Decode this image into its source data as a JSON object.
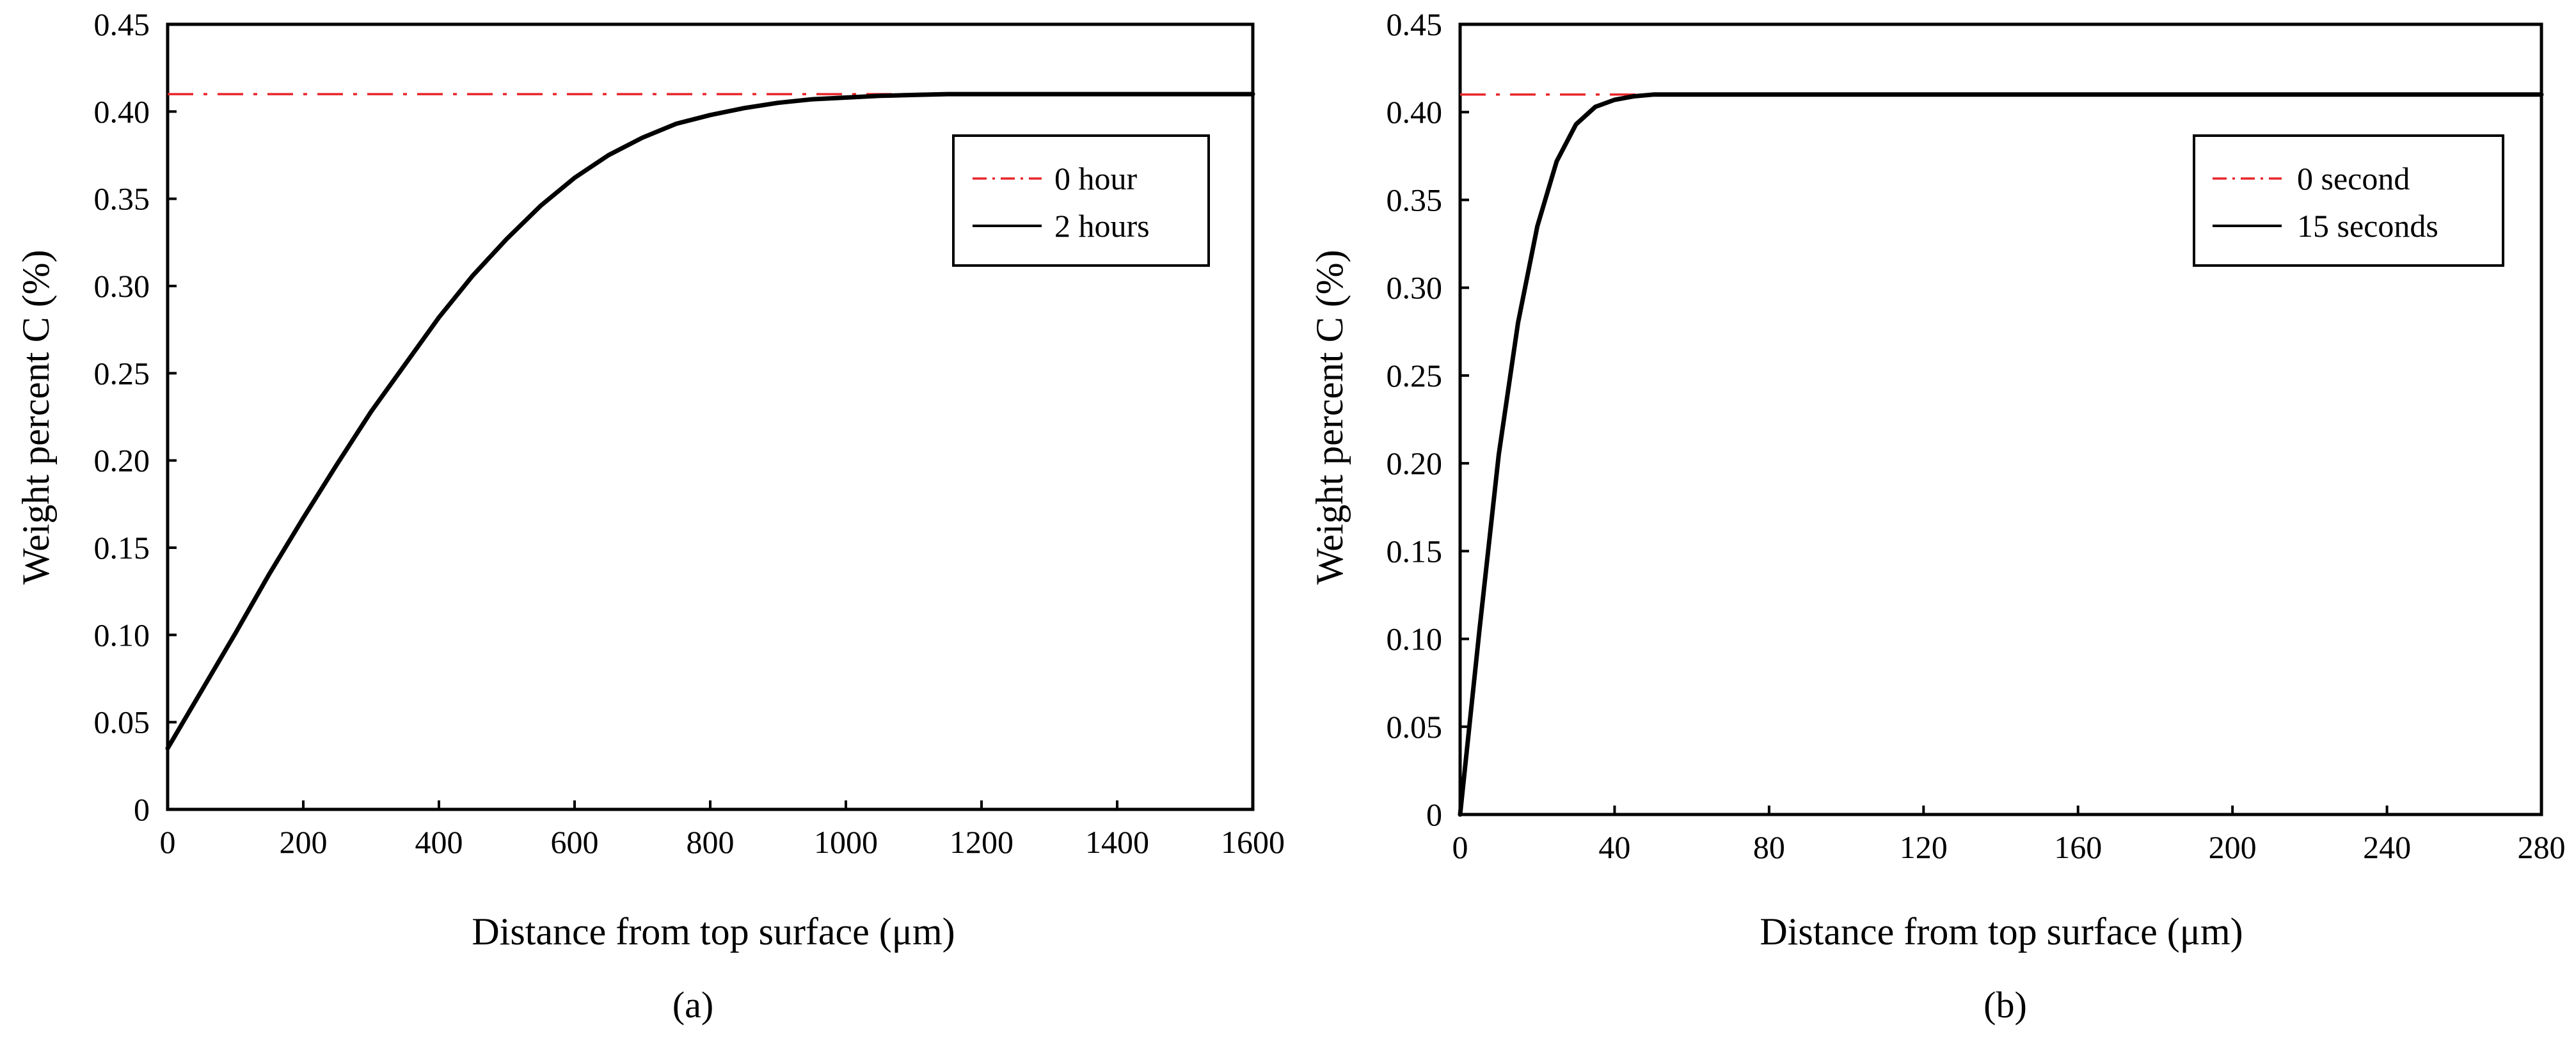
{
  "chart_data": [
    {
      "type": "line",
      "panel_label": "(a)",
      "xlabel": "Distance from top surface (μm)",
      "ylabel": "Weight percent C (%)",
      "xlim": [
        0,
        1600
      ],
      "ylim": [
        0,
        0.45
      ],
      "xticks": [
        0,
        200,
        400,
        600,
        800,
        1000,
        1200,
        1400,
        1600
      ],
      "yticks": [
        0,
        0.05,
        0.1,
        0.15,
        0.2,
        0.25,
        0.3,
        0.35,
        0.4,
        0.45
      ],
      "xtick_labels": [
        "0",
        "200",
        "400",
        "600",
        "800",
        "1000",
        "1200",
        "1400",
        "1600"
      ],
      "ytick_labels": [
        "0",
        "0.05",
        "0.10",
        "0.15",
        "0.20",
        "0.25",
        "0.30",
        "0.35",
        "0.40",
        "0.45"
      ],
      "grid": false,
      "legend_position": "top-right",
      "series": [
        {
          "name": "0 hour",
          "style": "dashdot",
          "color": "#e8262a",
          "x": [
            0,
            1600
          ],
          "y": [
            0.41,
            0.41
          ]
        },
        {
          "name": "2 hours",
          "style": "solid",
          "color": "#000000",
          "x": [
            0,
            50,
            100,
            150,
            200,
            250,
            300,
            350,
            400,
            450,
            500,
            550,
            600,
            650,
            700,
            750,
            800,
            850,
            900,
            950,
            1000,
            1050,
            1100,
            1150,
            1200,
            1300,
            1400,
            1500,
            1600
          ],
          "y": [
            0.035,
            0.068,
            0.101,
            0.135,
            0.167,
            0.198,
            0.228,
            0.255,
            0.282,
            0.306,
            0.327,
            0.346,
            0.362,
            0.375,
            0.385,
            0.393,
            0.398,
            0.402,
            0.405,
            0.407,
            0.408,
            0.409,
            0.4095,
            0.41,
            0.41,
            0.41,
            0.41,
            0.41,
            0.41
          ]
        }
      ]
    },
    {
      "type": "line",
      "panel_label": "(b)",
      "xlabel": "Distance from top surface (μm)",
      "ylabel": "Weight percent C (%)",
      "xlim": [
        0,
        280
      ],
      "ylim": [
        0,
        0.45
      ],
      "xticks": [
        0,
        40,
        80,
        120,
        160,
        200,
        240,
        280
      ],
      "yticks": [
        0,
        0.05,
        0.1,
        0.15,
        0.2,
        0.25,
        0.3,
        0.35,
        0.4,
        0.45
      ],
      "xtick_labels": [
        "0",
        "40",
        "80",
        "120",
        "160",
        "200",
        "240",
        "280"
      ],
      "ytick_labels": [
        "0",
        "0.05",
        "0.10",
        "0.15",
        "0.20",
        "0.25",
        "0.30",
        "0.35",
        "0.40",
        "0.45"
      ],
      "grid": false,
      "legend_position": "top-right",
      "series": [
        {
          "name": "0 second",
          "style": "dashdot",
          "color": "#e8262a",
          "x": [
            0,
            280
          ],
          "y": [
            0.41,
            0.41
          ]
        },
        {
          "name": "15 seconds",
          "style": "solid",
          "color": "#000000",
          "x": [
            0,
            5,
            10,
            15,
            20,
            25,
            30,
            35,
            40,
            45,
            50,
            55,
            60,
            80,
            120,
            160,
            200,
            240,
            280
          ],
          "y": [
            0.0,
            0.105,
            0.205,
            0.28,
            0.335,
            0.372,
            0.393,
            0.403,
            0.407,
            0.409,
            0.41,
            0.41,
            0.41,
            0.41,
            0.41,
            0.41,
            0.41,
            0.41,
            0.41
          ]
        }
      ]
    }
  ]
}
